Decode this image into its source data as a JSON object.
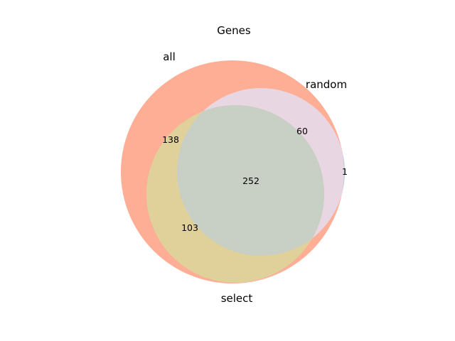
{
  "title": "Genes",
  "sets": [
    {
      "key": "all",
      "label": "all",
      "color": "#fdae95"
    },
    {
      "key": "random",
      "label": "random",
      "color": "#e8d6e2"
    },
    {
      "key": "select",
      "label": "select",
      "color": "#e0d09a"
    }
  ],
  "regions": [
    {
      "key": "all_only",
      "label": "138",
      "value": 138,
      "sets": [
        "all"
      ]
    },
    {
      "key": "all_random",
      "label": "60",
      "value": 60,
      "sets": [
        "all",
        "random"
      ]
    },
    {
      "key": "random_only",
      "label": "1",
      "value": 1,
      "sets": [
        "random"
      ]
    },
    {
      "key": "all_random_select",
      "label": "252",
      "value": 252,
      "sets": [
        "all",
        "random",
        "select"
      ]
    },
    {
      "key": "all_select",
      "label": "103",
      "value": 103,
      "sets": [
        "all",
        "select"
      ]
    }
  ],
  "colors": {
    "random_only_region": "#a9c8ec",
    "triple_overlap": "#c8cfc4"
  }
}
